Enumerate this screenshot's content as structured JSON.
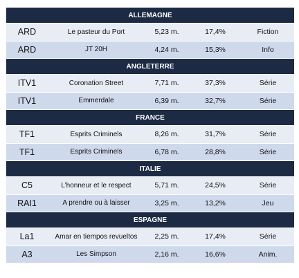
{
  "sections": [
    {
      "country": "ALLEMAGNE",
      "rows": [
        {
          "channel": "ARD",
          "program": "Le pasteur du Port",
          "viewers": "5,23 m.",
          "share": "17,4%",
          "genre": "Fiction"
        },
        {
          "channel": "ARD",
          "program": "JT 20H",
          "viewers": "4,24 m.",
          "share": "15,3%",
          "genre": "Info"
        }
      ]
    },
    {
      "country": "ANGLETERRE",
      "rows": [
        {
          "channel": "ITV1",
          "program": "Coronation Street",
          "viewers": "7,71 m.",
          "share": "37,3%",
          "genre": "Série"
        },
        {
          "channel": "ITV1",
          "program": "Emmerdale",
          "viewers": "6,39 m.",
          "share": "32,7%",
          "genre": "Série"
        }
      ]
    },
    {
      "country": "FRANCE",
      "rows": [
        {
          "channel": "TF1",
          "program": "Esprits Criminels",
          "viewers": "8,26 m.",
          "share": "31,7%",
          "genre": "Série"
        },
        {
          "channel": "TF1",
          "program": "Esprits Criminels",
          "viewers": "6,78 m.",
          "share": "28,8%",
          "genre": "Série"
        }
      ]
    },
    {
      "country": "ITALIE",
      "rows": [
        {
          "channel": "C5",
          "program": "L’honneur et le respect",
          "viewers": "5,71 m.",
          "share": "24,5%",
          "genre": "Série"
        },
        {
          "channel": "RAI1",
          "program": "A prendre ou à laisser",
          "viewers": "3,25 m.",
          "share": "13,2%",
          "genre": "Jeu"
        }
      ]
    },
    {
      "country": "ESPAGNE",
      "rows": [
        {
          "channel": "La1",
          "program": "Amar en tiempos revueltos",
          "viewers": "2,25 m.",
          "share": "17,4%",
          "genre": "Série"
        },
        {
          "channel": "A3",
          "program": "Les Simpson",
          "viewers": "2,16 m.",
          "share": "16,6%",
          "genre": "Anim."
        }
      ]
    }
  ],
  "colors": {
    "header_bg": "#1c2a44",
    "row_light": "#e8ecf5",
    "row_dark": "#cfd9ec"
  }
}
